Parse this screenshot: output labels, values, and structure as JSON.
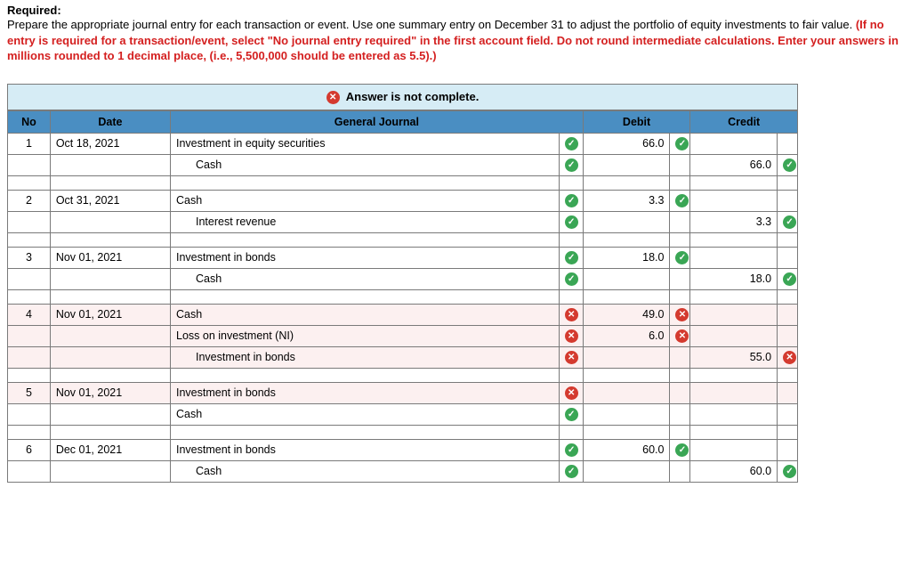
{
  "required_label": "Required:",
  "required_text_plain": "Prepare the appropriate journal entry for each transaction or event. Use one summary entry on December 31 to adjust the portfolio of equity investments to fair value. ",
  "required_text_warn": "(If no entry is required for a transaction/event, select \"No journal entry required\" in the first account field. Do not round intermediate calculations. Enter your answers in millions rounded to 1 decimal place, (i.e., 5,500,000 should be entered as 5.5).)",
  "banner": "Answer is not complete.",
  "headers": {
    "no": "No",
    "date": "Date",
    "gj": "General Journal",
    "debit": "Debit",
    "credit": "Credit"
  },
  "rows": [
    {
      "type": "data",
      "no": "1",
      "date": "Oct 18, 2021",
      "account": "Investment in equity securities",
      "indent": 0,
      "status": "check",
      "debit": "66.0",
      "dstat": "check",
      "credit": "",
      "cstat": "",
      "err": false
    },
    {
      "type": "data",
      "no": "",
      "date": "",
      "account": "Cash",
      "indent": 1,
      "status": "check",
      "debit": "",
      "dstat": "",
      "credit": "66.0",
      "cstat": "check",
      "err": false
    },
    {
      "type": "spacer"
    },
    {
      "type": "data",
      "no": "2",
      "date": "Oct 31, 2021",
      "account": "Cash",
      "indent": 0,
      "status": "check",
      "debit": "3.3",
      "dstat": "check",
      "credit": "",
      "cstat": "",
      "err": false
    },
    {
      "type": "data",
      "no": "",
      "date": "",
      "account": "Interest revenue",
      "indent": 1,
      "status": "check",
      "debit": "",
      "dstat": "",
      "credit": "3.3",
      "cstat": "check",
      "err": false
    },
    {
      "type": "spacer"
    },
    {
      "type": "data",
      "no": "3",
      "date": "Nov 01, 2021",
      "account": "Investment in bonds",
      "indent": 0,
      "status": "check",
      "debit": "18.0",
      "dstat": "check",
      "credit": "",
      "cstat": "",
      "err": false
    },
    {
      "type": "data",
      "no": "",
      "date": "",
      "account": "Cash",
      "indent": 1,
      "status": "check",
      "debit": "",
      "dstat": "",
      "credit": "18.0",
      "cstat": "check",
      "err": false
    },
    {
      "type": "spacer"
    },
    {
      "type": "data",
      "no": "4",
      "date": "Nov 01, 2021",
      "account": "Cash",
      "indent": 0,
      "status": "cross",
      "debit": "49.0",
      "dstat": "cross",
      "credit": "",
      "cstat": "",
      "err": true
    },
    {
      "type": "data",
      "no": "",
      "date": "",
      "account": "Loss on investment (NI)",
      "indent": 0,
      "status": "cross",
      "debit": "6.0",
      "dstat": "cross",
      "credit": "",
      "cstat": "",
      "err": true
    },
    {
      "type": "data",
      "no": "",
      "date": "",
      "account": "Investment in bonds",
      "indent": 1,
      "status": "cross",
      "debit": "",
      "dstat": "",
      "credit": "55.0",
      "cstat": "cross",
      "err": true
    },
    {
      "type": "spacer"
    },
    {
      "type": "data",
      "no": "5",
      "date": "Nov 01, 2021",
      "account": "Investment in bonds",
      "indent": 0,
      "status": "cross",
      "debit": "",
      "dstat": "",
      "credit": "",
      "cstat": "",
      "err": true
    },
    {
      "type": "data",
      "no": "",
      "date": "",
      "account": "Cash",
      "indent": 0,
      "status": "check",
      "debit": "",
      "dstat": "",
      "credit": "",
      "cstat": "",
      "err": false
    },
    {
      "type": "spacer"
    },
    {
      "type": "data",
      "no": "6",
      "date": "Dec 01, 2021",
      "account": "Investment in bonds",
      "indent": 0,
      "status": "check",
      "debit": "60.0",
      "dstat": "check",
      "credit": "",
      "cstat": "",
      "err": false
    },
    {
      "type": "data",
      "no": "",
      "date": "",
      "account": "Cash",
      "indent": 1,
      "status": "check",
      "debit": "",
      "dstat": "",
      "credit": "60.0",
      "cstat": "check",
      "err": false
    }
  ]
}
